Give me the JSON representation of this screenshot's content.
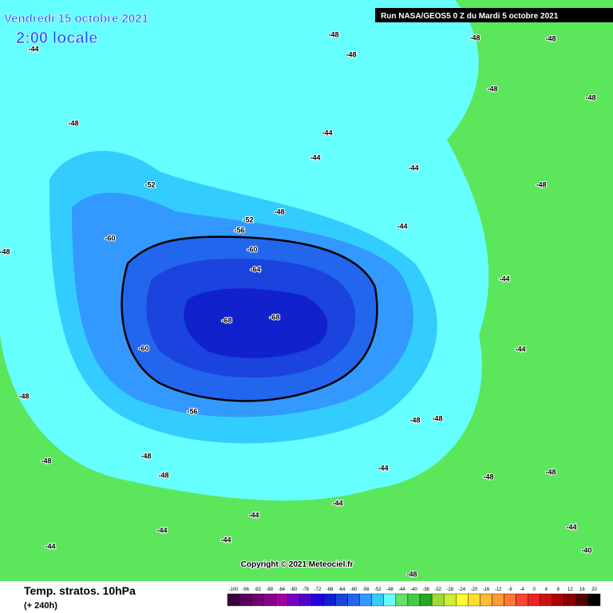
{
  "header": {
    "title": "Vendredi 15 octobre 2021",
    "subtitle": "2:00 locale",
    "run": "Run NASA/GEOS5 0 Z du Mardi 5 octobre 2021"
  },
  "footer": {
    "title": "Temp. stratos. 10hPa",
    "lead": "(+ 240h)",
    "copyright": "Copyright © 2021 Meteociel.fr"
  },
  "scale": {
    "labels": [
      -100,
      -96,
      -92,
      -88,
      -84,
      -80,
      -76,
      -72,
      -68,
      -64,
      -60,
      -56,
      -52,
      -48,
      -44,
      -40,
      -36,
      -32,
      -28,
      -24,
      -20,
      -16,
      -12,
      -8,
      -4,
      0,
      4,
      8,
      12,
      16,
      20
    ],
    "colors": [
      "#3a0040",
      "#55005a",
      "#700070",
      "#8a008a",
      "#a000a0",
      "#7a00c0",
      "#5000d0",
      "#2800e0",
      "#1020d0",
      "#1a44dd",
      "#2266ee",
      "#3399ff",
      "#33ccff",
      "#66ffff",
      "#66e066",
      "#44cc44",
      "#22aa22",
      "#99dd33",
      "#ccee33",
      "#ffff33",
      "#ffdd33",
      "#ffbb33",
      "#ff9933",
      "#ff7733",
      "#ff4433",
      "#ee2222",
      "#cc1111",
      "#aa0000",
      "#880000",
      "#550000",
      "#000000"
    ]
  },
  "contour_labels": [
    "-44",
    "-48",
    "-48",
    "-52",
    "-60",
    "-52",
    "-56",
    "-60",
    "-64",
    "-68",
    "-68",
    "-60",
    "-56",
    "-48",
    "-44",
    "-44",
    "-44",
    "-44",
    "-44",
    "-48",
    "-48",
    "-48",
    "-48",
    "-48",
    "-48",
    "-48",
    "-48",
    "-48",
    "-48",
    "-48",
    "-44",
    "-44",
    "-44",
    "-44",
    "-44",
    "-44",
    "-44",
    "-44",
    "-40",
    "-48",
    "-48",
    "-48",
    "-48",
    "-48"
  ]
}
